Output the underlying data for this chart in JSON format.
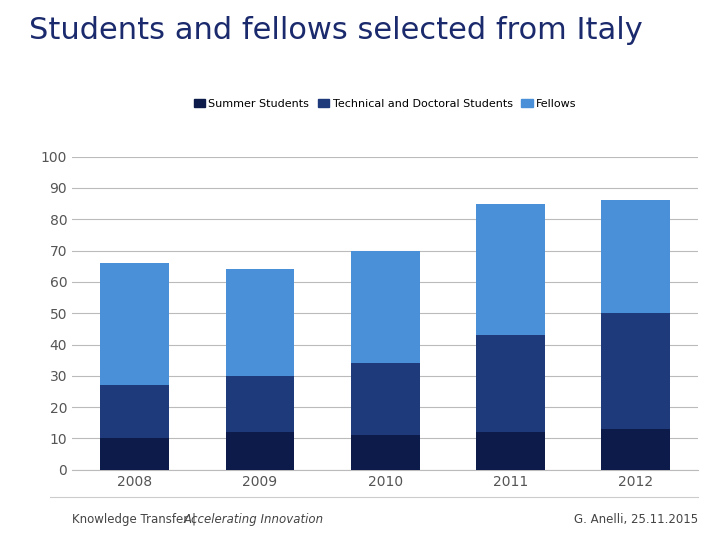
{
  "title": "Students and fellows selected from Italy",
  "categories": [
    "2008",
    "2009",
    "2010",
    "2011",
    "2012"
  ],
  "summer_students": [
    10,
    12,
    11,
    12,
    13
  ],
  "technical_doctoral": [
    17,
    18,
    23,
    31,
    37
  ],
  "fellows": [
    39,
    34,
    36,
    42,
    36
  ],
  "color_summer": "#0d1b4b",
  "color_technical": "#1e3a7a",
  "color_fellows": "#4a90d9",
  "legend_labels": [
    "Summer Students",
    "Technical and Doctoral Students",
    "Fellows"
  ],
  "ylim": [
    0,
    100
  ],
  "yticks": [
    0,
    10,
    20,
    30,
    40,
    50,
    60,
    70,
    80,
    90,
    100
  ],
  "footer_left_normal": "Knowledge Transfer | ",
  "footer_left_italic": "Accelerating Innovation",
  "footer_right": "G. Anelli, 25.11.2015",
  "title_color": "#1a2a6c",
  "title_fontsize": 22,
  "axis_label_color": "#555555",
  "grid_color": "#bbbbbb",
  "bg_color": "#ffffff",
  "bar_width": 0.55
}
